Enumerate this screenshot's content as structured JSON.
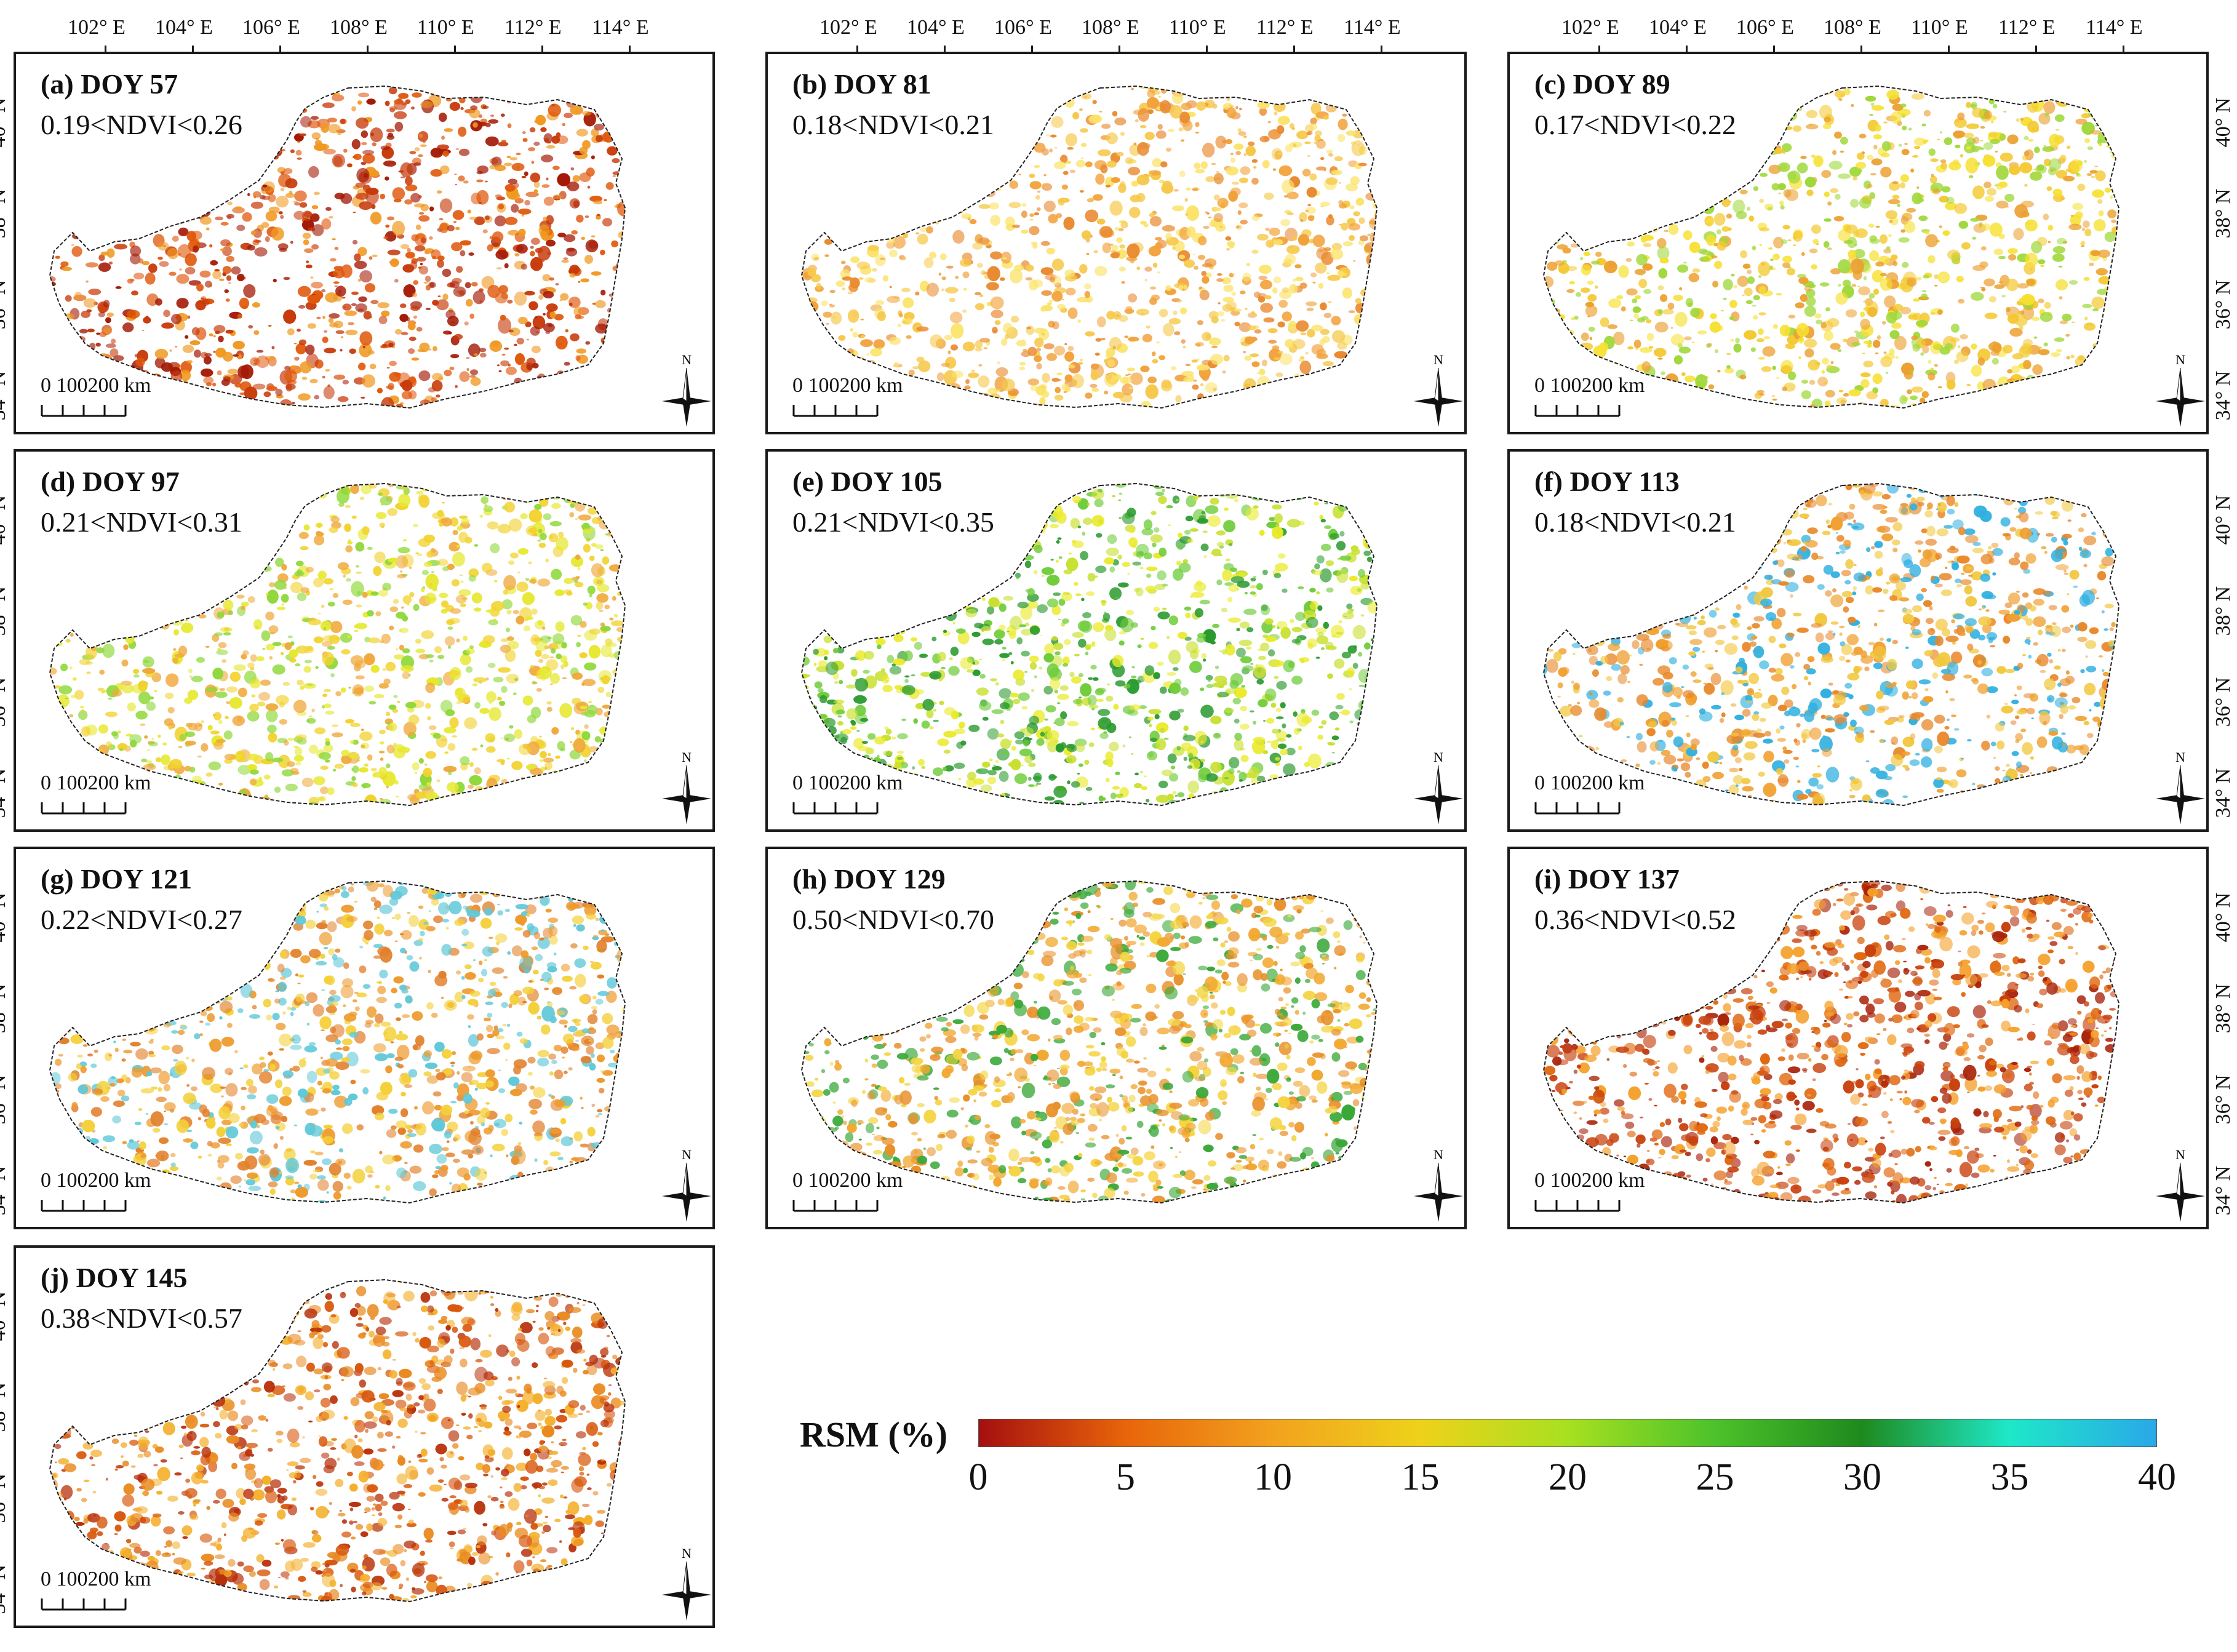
{
  "figure": {
    "longitude_labels": [
      "102° E",
      "104° E",
      "106° E",
      "108° E",
      "110° E",
      "112° E",
      "114° E"
    ],
    "latitude_labels": [
      "40° N",
      "38° N",
      "36° N",
      "34° N"
    ],
    "panels": [
      {
        "title": "(a) DOY 57",
        "ndvi": "0.19<NDVI<0.26",
        "scale_label": "0  100200 km",
        "north_label": "N",
        "palette": [
          "#e0580c",
          "#c73a0a",
          "#f09820",
          "#a41a06"
        ]
      },
      {
        "title": "(b) DOY 81",
        "ndvi": "0.18<NDVI<0.21",
        "scale_label": "0  100200 km",
        "north_label": "N",
        "palette": [
          "#f2a13a",
          "#f6c84a",
          "#e98a30",
          "#fbe36a"
        ]
      },
      {
        "title": "(c) DOY 89",
        "ndvi": "0.17<NDVI<0.22",
        "scale_label": "0  100200 km",
        "north_label": "N",
        "palette": [
          "#f4c830",
          "#f6e030",
          "#eca030",
          "#9fd83a"
        ]
      },
      {
        "title": "(d) DOY 97",
        "ndvi": "0.21<NDVI<0.31",
        "scale_label": "0  100200 km",
        "north_label": "N",
        "palette": [
          "#f2d22e",
          "#e6e82e",
          "#8fd83a",
          "#f0a83a"
        ]
      },
      {
        "title": "(e) DOY 105",
        "ndvi": "0.21<NDVI<0.35",
        "scale_label": "0  100200 km",
        "north_label": "N",
        "palette": [
          "#eaea2a",
          "#c8e030",
          "#6fcc3a",
          "#2a9a2e"
        ]
      },
      {
        "title": "(f) DOY 113",
        "ndvi": "0.18<NDVI<0.21",
        "scale_label": "0  100200 km",
        "north_label": "N",
        "palette": [
          "#f0a030",
          "#f2c840",
          "#e8882a",
          "#30b0e0"
        ]
      },
      {
        "title": "(g) DOY 121",
        "ndvi": "0.22<NDVI<0.27",
        "scale_label": "0  100200 km",
        "north_label": "N",
        "palette": [
          "#ee9a2c",
          "#f4d038",
          "#e2802a",
          "#60c8d8"
        ]
      },
      {
        "title": "(h) DOY 129",
        "ndvi": "0.50<NDVI<0.70",
        "scale_label": "0  100200 km",
        "north_label": "N",
        "palette": [
          "#f2a830",
          "#f4d440",
          "#e8902a",
          "#3aa838"
        ]
      },
      {
        "title": "(i) DOY 137",
        "ndvi": "0.36<NDVI<0.52",
        "scale_label": "0  100200 km",
        "north_label": "N",
        "palette": [
          "#c8400c",
          "#a8220a",
          "#e0680f",
          "#f4a02a"
        ]
      },
      {
        "title": "(j) DOY 145",
        "ndvi": "0.38<NDVI<0.57",
        "scale_label": "0  100200 km",
        "north_label": "N",
        "palette": [
          "#d8580e",
          "#e98a20",
          "#b8300a",
          "#f4b02c"
        ]
      }
    ]
  },
  "legend": {
    "title": "RSM (%)",
    "ticks": [
      "0",
      "5",
      "10",
      "15",
      "20",
      "25",
      "30",
      "35",
      "40"
    ],
    "min": 0,
    "max": 40,
    "stops": [
      {
        "value": 0,
        "color": "#a50f0f"
      },
      {
        "value": 5,
        "color": "#e8650a"
      },
      {
        "value": 10,
        "color": "#f2a21e"
      },
      {
        "value": 15,
        "color": "#eed21a"
      },
      {
        "value": 20,
        "color": "#a8e020"
      },
      {
        "value": 25,
        "color": "#4cc22a"
      },
      {
        "value": 30,
        "color": "#1e8a1e"
      },
      {
        "value": 35,
        "color": "#1ee8c8"
      },
      {
        "value": 40,
        "color": "#2aa8e8"
      }
    ]
  }
}
